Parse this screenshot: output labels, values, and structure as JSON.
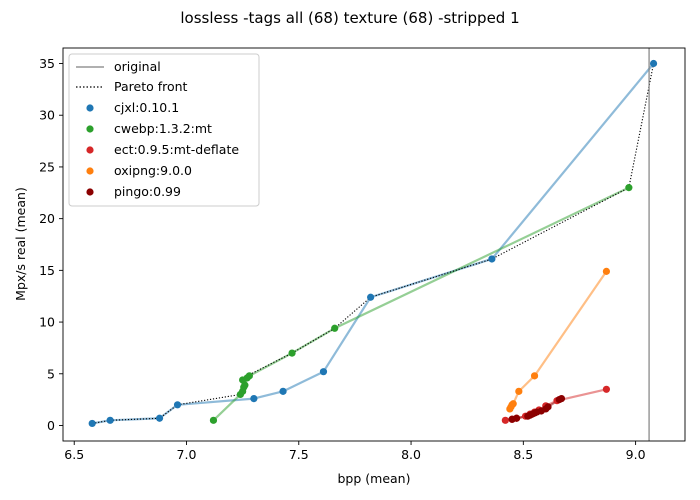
{
  "chart_data": {
    "type": "scatter",
    "title": "lossless -tags all (68) texture (68) -stripped 1",
    "xlabel": "bpp (mean)",
    "ylabel": "Mpx/s real (mean)",
    "xlim": [
      6.45,
      9.22
    ],
    "ylim": [
      -1.5,
      36.5
    ],
    "xticks": [
      6.5,
      7.0,
      7.5,
      8.0,
      8.5,
      9.0
    ],
    "xtick_labels": [
      "6.5",
      "7.0",
      "7.5",
      "8.0",
      "8.5",
      "9.0"
    ],
    "yticks": [
      0,
      5,
      10,
      15,
      20,
      25,
      30,
      35
    ],
    "ytick_labels": [
      "0",
      "5",
      "10",
      "15",
      "20",
      "25",
      "30",
      "35"
    ],
    "grid": false,
    "legend_position": "top-left",
    "original": {
      "name": "original",
      "x": 9.06,
      "color": "#808080"
    },
    "pareto": {
      "name": "Pareto front",
      "color": "#000000",
      "x": [
        6.58,
        6.66,
        6.88,
        6.96,
        7.24,
        7.25,
        7.27,
        7.47,
        7.66,
        7.82,
        8.36,
        8.97,
        9.08
      ],
      "y": [
        0.2,
        0.5,
        0.7,
        2.0,
        3.0,
        4.4,
        4.8,
        7.0,
        9.4,
        12.4,
        16.1,
        23.0,
        35.0
      ]
    },
    "series": [
      {
        "name": "cjxl:0.10.1",
        "color": "#1f77b4",
        "x": [
          6.58,
          6.66,
          6.88,
          6.96,
          7.3,
          7.43,
          7.61,
          7.82,
          8.36,
          9.08
        ],
        "y": [
          0.2,
          0.5,
          0.7,
          2.0,
          2.6,
          3.3,
          5.2,
          12.4,
          16.1,
          35.0
        ]
      },
      {
        "name": "cwebp:1.3.2:mt",
        "color": "#2ca02c",
        "x": [
          7.12,
          7.24,
          7.25,
          7.255,
          7.26,
          7.25,
          7.27,
          7.28,
          7.47,
          7.66,
          8.97
        ],
        "y": [
          0.5,
          3.0,
          3.3,
          3.7,
          3.9,
          4.4,
          4.6,
          4.8,
          7.0,
          9.4,
          23.0
        ]
      },
      {
        "name": "ect:0.9.5:mt-deflate",
        "color": "#d62728",
        "x": [
          8.42,
          8.45,
          8.47,
          8.51,
          8.53,
          8.55,
          8.57,
          8.6,
          8.65,
          8.87
        ],
        "y": [
          0.5,
          0.6,
          0.7,
          0.9,
          1.1,
          1.3,
          1.5,
          1.9,
          2.4,
          3.5
        ]
      },
      {
        "name": "oxipng:9.0.0",
        "color": "#ff7f0e",
        "x": [
          8.44,
          8.445,
          8.45,
          8.455,
          8.48,
          8.55,
          8.87
        ],
        "y": [
          1.6,
          1.8,
          2.0,
          2.1,
          3.3,
          4.8,
          14.9
        ]
      },
      {
        "name": "pingo:0.99",
        "color": "#8b0000",
        "x": [
          8.45,
          8.47,
          8.52,
          8.53,
          8.54,
          8.55,
          8.56,
          8.58,
          8.6,
          8.61,
          8.66,
          8.67
        ],
        "y": [
          0.6,
          0.7,
          0.9,
          1.0,
          1.1,
          1.2,
          1.3,
          1.4,
          1.6,
          1.8,
          2.5,
          2.6
        ]
      }
    ]
  }
}
